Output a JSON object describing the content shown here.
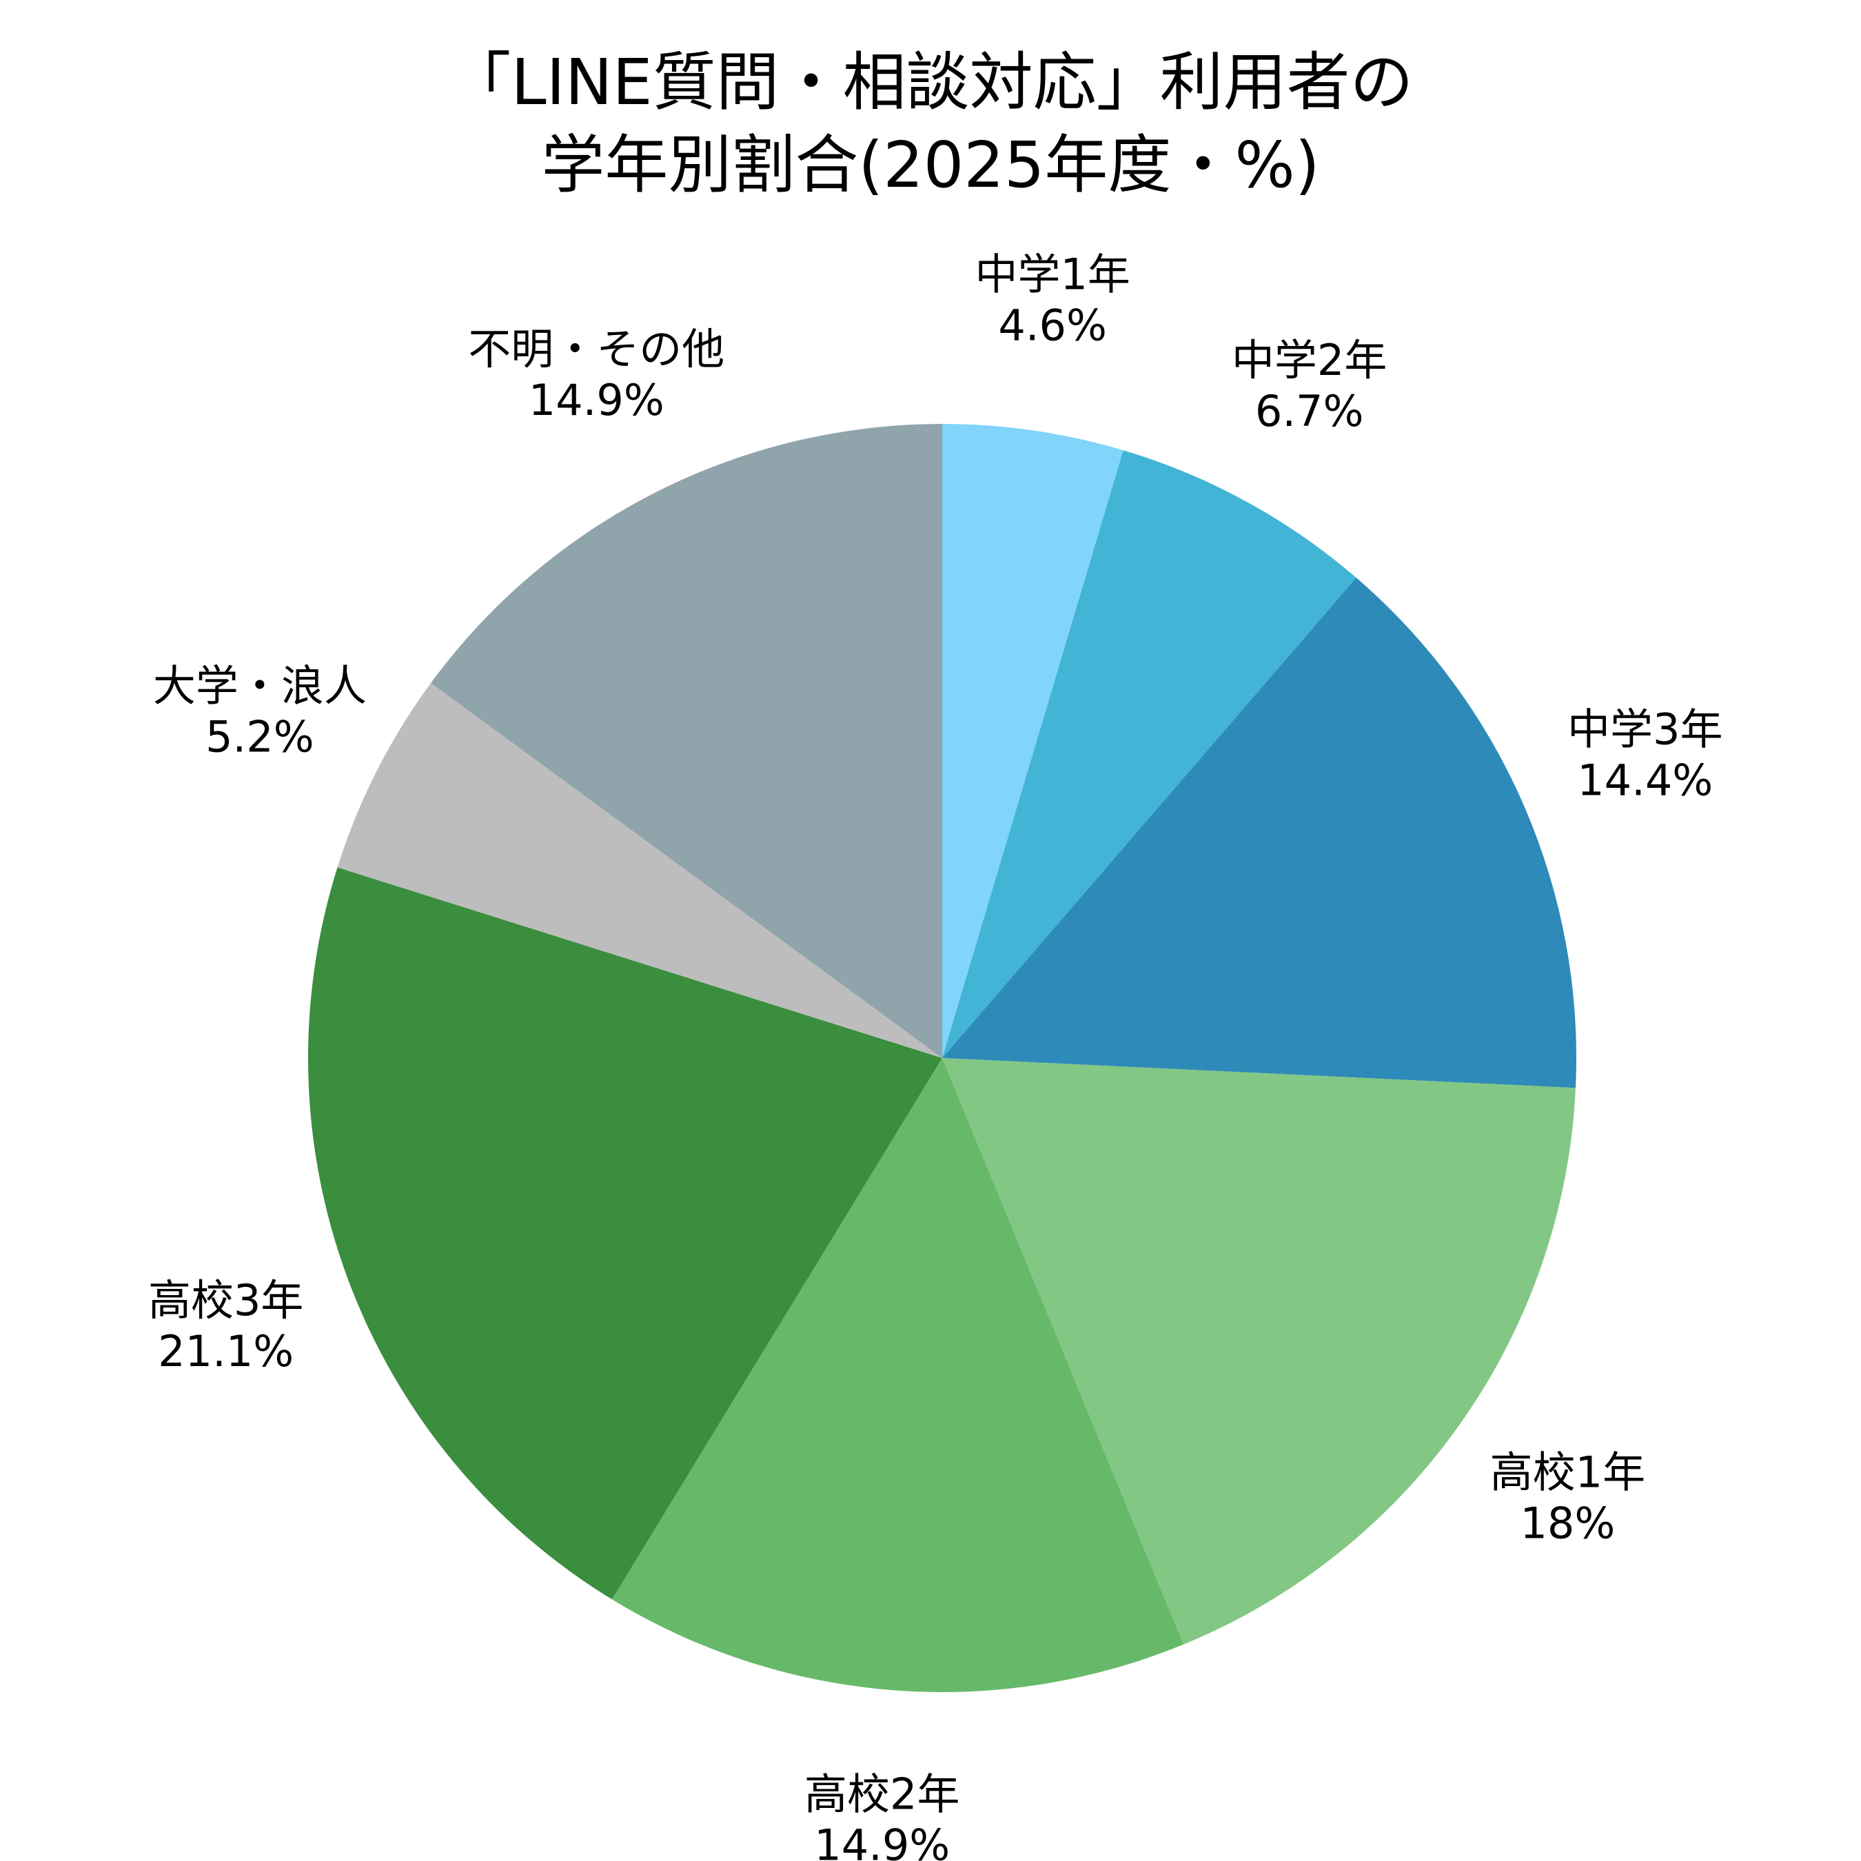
{
  "chart_data": {
    "type": "pie",
    "title_lines": [
      "「LINE質問・相談対応」利用者の",
      "学年別割合(2025年度・%)"
    ],
    "unit": "%",
    "start_angle": "12 o'clock",
    "direction": "clockwise",
    "slices": [
      {
        "label": "中学1年",
        "value": 4.6,
        "value_label": "4.6%",
        "color": "#81D4FA"
      },
      {
        "label": "中学2年",
        "value": 6.7,
        "value_label": "6.7%",
        "color": "#42B4D6"
      },
      {
        "label": "中学3年",
        "value": 14.4,
        "value_label": "14.4%",
        "color": "#2E8AB8"
      },
      {
        "label": "高校1年",
        "value": 18,
        "value_label": "18%",
        "color": "#83C785"
      },
      {
        "label": "高校2年",
        "value": 14.9,
        "value_label": "14.9%",
        "color": "#67B96A"
      },
      {
        "label": "高校3年",
        "value": 21.1,
        "value_label": "21.1%",
        "color": "#3A8E3E"
      },
      {
        "label": "大学・浪人",
        "value": 5.2,
        "value_label": "5.2%",
        "color": "#BDBDBD"
      },
      {
        "label": "不明・その他",
        "value": 14.9,
        "value_label": "14.9%",
        "color": "#90A4AB"
      }
    ]
  }
}
